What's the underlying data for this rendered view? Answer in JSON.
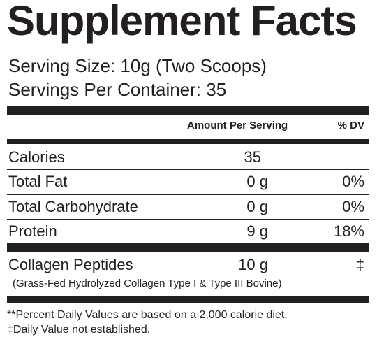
{
  "title": "Supplement Facts",
  "serving_size": "Serving Size: 10g (Two Scoops)",
  "servings_per_container": "Servings Per Container: 35",
  "header": {
    "amount": "Amount Per Serving",
    "dv": "% DV"
  },
  "rows": [
    {
      "label": "Calories",
      "amount": "35",
      "dv": ""
    },
    {
      "label": "Total Fat",
      "amount": "0 g",
      "dv": "0%"
    },
    {
      "label": "Total Carbohydrate",
      "amount": "0 g",
      "dv": "0%"
    },
    {
      "label": "Protein",
      "amount": "9 g",
      "dv": "18%"
    }
  ],
  "collagen": {
    "label": "Collagen Peptides",
    "amount": "10 g",
    "dv": "‡",
    "note": "(Grass-Fed Hydrolyzed Collagen Type I & Type III Bovine)"
  },
  "footnotes": [
    "**Percent Daily Values are based on a 2,000 calorie diet.",
    "‡Daily Value not established."
  ]
}
